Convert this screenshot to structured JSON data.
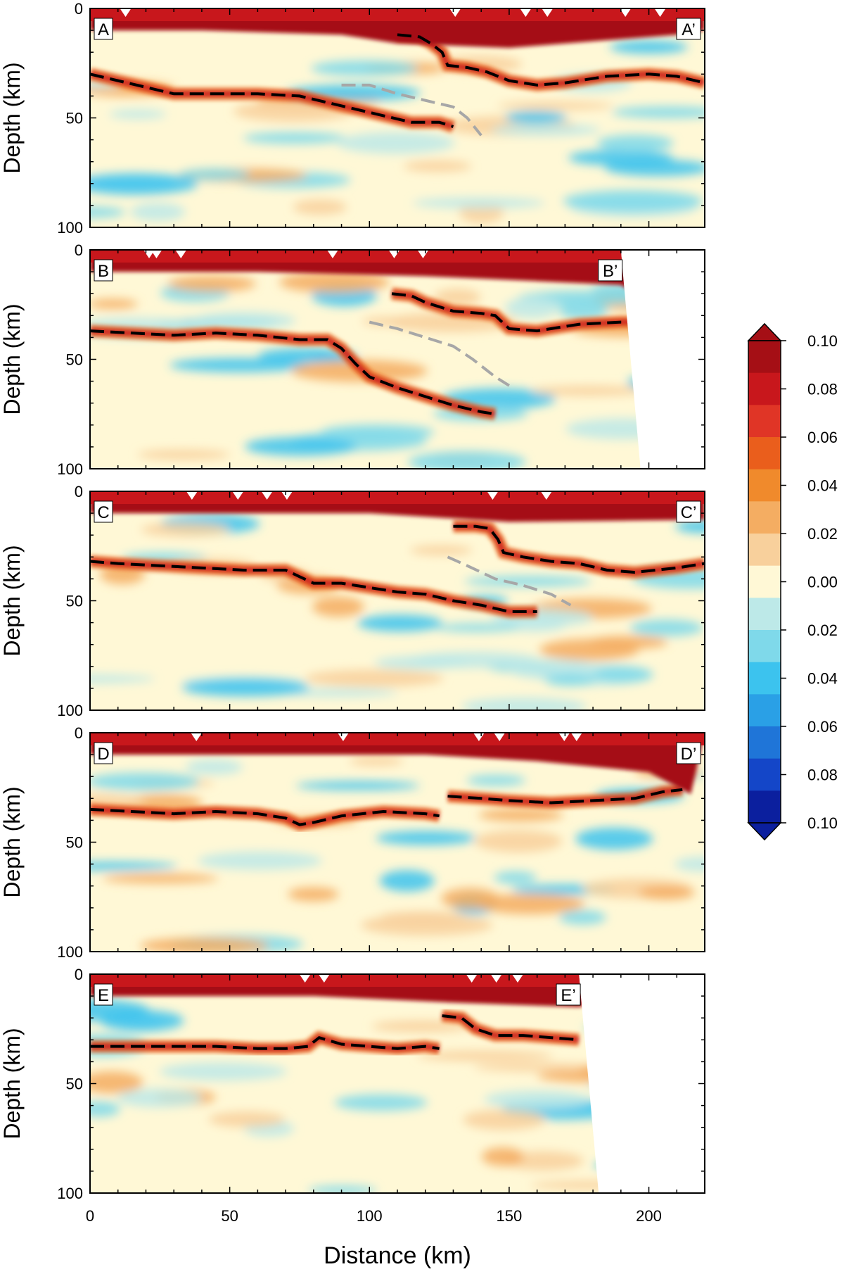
{
  "chart_data": {
    "type": "heatmap",
    "shared": {
      "xlabel": "Distance (km)",
      "ylabel": "Depth (km)",
      "xlim": [
        0,
        220
      ],
      "ylim": [
        100,
        0
      ],
      "x_ticks": [
        0,
        50,
        100,
        150,
        200
      ],
      "y_ticks": [
        0,
        50,
        100
      ],
      "colorbar": {
        "ticks": [
          0.1,
          0.08,
          0.06,
          0.04,
          0.02,
          0.0,
          0.02,
          0.04,
          0.06,
          0.08,
          0.1
        ],
        "tick_labels": [
          "0.10",
          "0.08",
          "0.06",
          "0.04",
          "0.02",
          "0.00",
          "0.02",
          "0.04",
          "0.06",
          "0.08",
          "0.10"
        ],
        "colors": [
          "#a50f15",
          "#c8171c",
          "#e03526",
          "#ea5e1c",
          "#f08a2c",
          "#f4ad62",
          "#f8d09c",
          "#fff8d6",
          "#bde9e8",
          "#7fd9ea",
          "#3cc3ee",
          "#2aa0e6",
          "#1f75d8",
          "#1446c8",
          "#0b1f9e"
        ],
        "extend": "both"
      }
    },
    "panels": [
      {
        "label_left": "A",
        "label_right": "A’",
        "x_max_data": 220,
        "surface_red": [
          [
            0,
            0
          ],
          [
            40,
            0
          ],
          [
            90,
            2
          ],
          [
            110,
            6
          ],
          [
            150,
            8
          ],
          [
            180,
            5
          ],
          [
            210,
            2
          ],
          [
            220,
            0
          ]
        ],
        "black_lines": [
          [
            [
              0,
              30
            ],
            [
              10,
              33
            ],
            [
              20,
              36
            ],
            [
              30,
              39
            ],
            [
              45,
              39
            ],
            [
              60,
              39
            ],
            [
              75,
              40
            ],
            [
              85,
              43
            ],
            [
              95,
              46
            ],
            [
              105,
              49
            ],
            [
              115,
              52
            ],
            [
              125,
              52
            ],
            [
              130,
              54
            ]
          ],
          [
            [
              110,
              12
            ],
            [
              118,
              13
            ],
            [
              122,
              16
            ],
            [
              126,
              20
            ],
            [
              128,
              26
            ],
            [
              135,
              27
            ],
            [
              142,
              29
            ],
            [
              150,
              33
            ],
            [
              160,
              35
            ],
            [
              170,
              34
            ],
            [
              185,
              31
            ],
            [
              200,
              30
            ],
            [
              210,
              31
            ],
            [
              220,
              34
            ]
          ]
        ],
        "gray_lines": [
          [
            [
              90,
              35
            ],
            [
              100,
              35
            ],
            [
              110,
              39
            ],
            [
              120,
              42
            ],
            [
              130,
              45
            ],
            [
              135,
              50
            ],
            [
              140,
              58
            ]
          ]
        ]
      },
      {
        "label_left": "B",
        "label_right": "B’",
        "x_max_data": 195,
        "surface_red": [
          [
            0,
            0
          ],
          [
            60,
            0
          ],
          [
            120,
            2
          ],
          [
            190,
            6
          ],
          [
            195,
            10
          ]
        ],
        "black_lines": [
          [
            [
              0,
              37
            ],
            [
              15,
              38
            ],
            [
              30,
              39
            ],
            [
              45,
              38
            ],
            [
              60,
              39
            ],
            [
              75,
              41
            ],
            [
              85,
              41
            ],
            [
              90,
              45
            ],
            [
              95,
              52
            ],
            [
              100,
              58
            ],
            [
              110,
              63
            ],
            [
              120,
              67
            ],
            [
              130,
              71
            ],
            [
              140,
              74
            ],
            [
              145,
              75
            ]
          ],
          [
            [
              108,
              20
            ],
            [
              115,
              21
            ],
            [
              120,
              24
            ],
            [
              130,
              28
            ],
            [
              140,
              29
            ],
            [
              145,
              30
            ],
            [
              150,
              36
            ],
            [
              160,
              37
            ],
            [
              175,
              34
            ],
            [
              190,
              33
            ],
            [
              195,
              33
            ]
          ]
        ],
        "gray_lines": [
          [
            [
              100,
              33
            ],
            [
              110,
              36
            ],
            [
              120,
              40
            ],
            [
              130,
              44
            ],
            [
              137,
              50
            ],
            [
              145,
              58
            ],
            [
              150,
              62
            ]
          ]
        ]
      },
      {
        "label_left": "C",
        "label_right": "C’",
        "x_max_data": 220,
        "surface_red": [
          [
            0,
            0
          ],
          [
            100,
            0
          ],
          [
            150,
            4
          ],
          [
            220,
            3
          ]
        ],
        "black_lines": [
          [
            [
              0,
              32
            ],
            [
              10,
              33
            ],
            [
              25,
              34
            ],
            [
              40,
              35
            ],
            [
              55,
              36
            ],
            [
              70,
              36
            ],
            [
              75,
              39
            ],
            [
              80,
              42
            ],
            [
              90,
              42
            ],
            [
              100,
              44
            ],
            [
              110,
              46
            ],
            [
              120,
              47
            ],
            [
              130,
              50
            ],
            [
              140,
              52
            ],
            [
              150,
              55
            ],
            [
              160,
              55
            ]
          ],
          [
            [
              130,
              16
            ],
            [
              138,
              16
            ],
            [
              143,
              17
            ],
            [
              146,
              22
            ],
            [
              148,
              28
            ],
            [
              155,
              30
            ],
            [
              165,
              32
            ],
            [
              175,
              33
            ],
            [
              185,
              36
            ],
            [
              195,
              37
            ],
            [
              210,
              35
            ],
            [
              220,
              33
            ]
          ]
        ],
        "gray_lines": [
          [
            [
              128,
              30
            ],
            [
              135,
              34
            ],
            [
              145,
              40
            ],
            [
              155,
              43
            ],
            [
              165,
              47
            ],
            [
              172,
              52
            ]
          ]
        ]
      },
      {
        "label_left": "D",
        "label_right": "D’",
        "x_max_data": 220,
        "surface_red": [
          [
            0,
            0
          ],
          [
            120,
            0
          ],
          [
            160,
            3
          ],
          [
            200,
            8
          ],
          [
            215,
            18
          ]
        ],
        "black_lines": [
          [
            [
              0,
              35
            ],
            [
              15,
              36
            ],
            [
              30,
              37
            ],
            [
              45,
              36
            ],
            [
              60,
              37
            ],
            [
              70,
              39
            ],
            [
              75,
              42
            ],
            [
              80,
              41
            ],
            [
              90,
              38
            ],
            [
              105,
              36
            ],
            [
              120,
              37
            ],
            [
              125,
              38
            ]
          ],
          [
            [
              128,
              29
            ],
            [
              140,
              30
            ],
            [
              150,
              31
            ],
            [
              165,
              32
            ],
            [
              180,
              31
            ],
            [
              195,
              30
            ],
            [
              205,
              27
            ],
            [
              212,
              26
            ]
          ]
        ],
        "gray_lines": []
      },
      {
        "label_left": "E",
        "label_right": "E’",
        "x_max_data": 180,
        "surface_red": [
          [
            0,
            0
          ],
          [
            80,
            0
          ],
          [
            130,
            3
          ],
          [
            175,
            5
          ]
        ],
        "black_lines": [
          [
            [
              0,
              33
            ],
            [
              15,
              33
            ],
            [
              30,
              33
            ],
            [
              45,
              33
            ],
            [
              60,
              34
            ],
            [
              70,
              34
            ],
            [
              78,
              33
            ],
            [
              82,
              29
            ],
            [
              90,
              32
            ],
            [
              100,
              33
            ],
            [
              110,
              34
            ],
            [
              120,
              33
            ],
            [
              125,
              34
            ]
          ],
          [
            [
              126,
              19
            ],
            [
              133,
              20
            ],
            [
              138,
              25
            ],
            [
              145,
              28
            ],
            [
              155,
              28
            ],
            [
              165,
              29
            ],
            [
              175,
              30
            ]
          ]
        ],
        "gray_lines": []
      }
    ]
  }
}
